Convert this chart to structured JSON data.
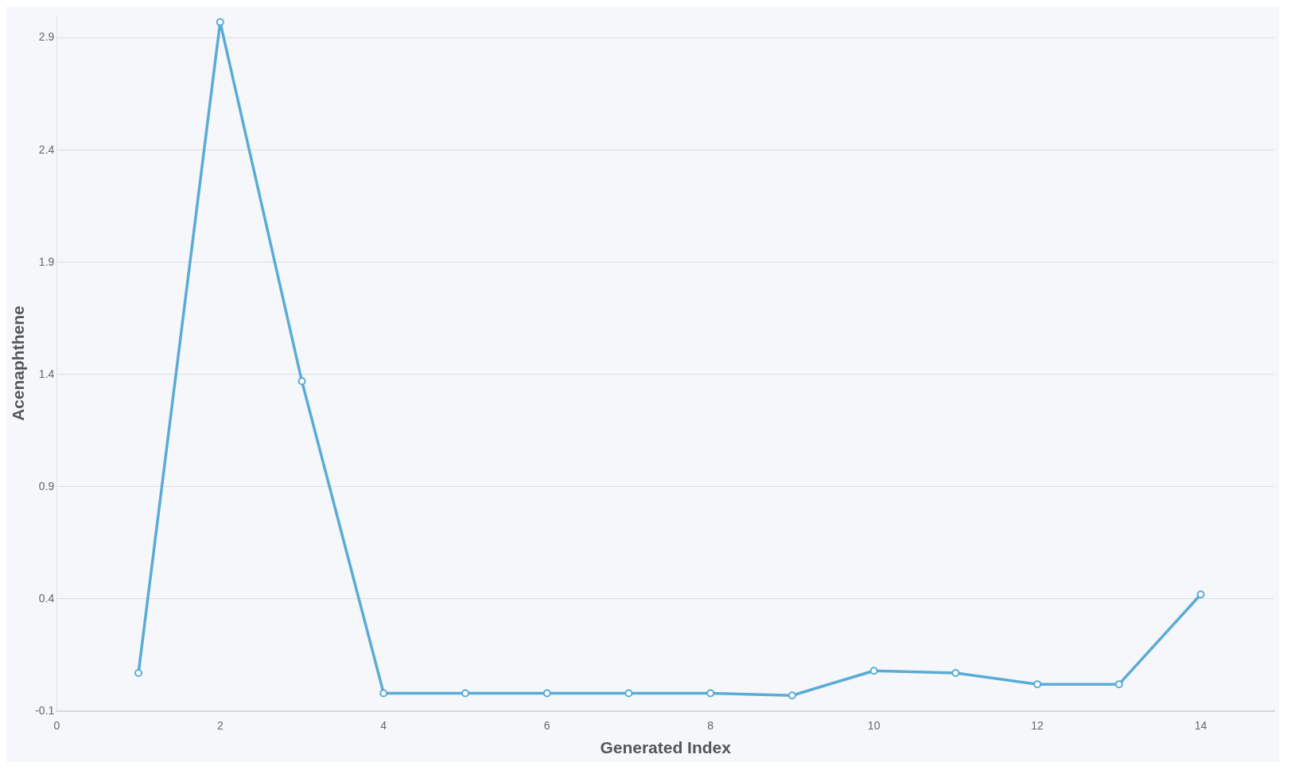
{
  "chart_data": {
    "type": "line",
    "xlabel": "Generated Index",
    "ylabel": "Acenaphthene",
    "x": [
      1,
      2,
      3,
      4,
      5,
      6,
      7,
      8,
      9,
      10,
      11,
      12,
      13,
      14
    ],
    "series": [
      {
        "color": "#5aabd6",
        "values": [
          0.07,
          2.97,
          1.37,
          -0.02,
          -0.02,
          -0.02,
          -0.02,
          -0.02,
          -0.03,
          0.08,
          0.07,
          0.02,
          0.02,
          0.42
        ]
      }
    ],
    "xlim": [
      0,
      14.9
    ],
    "xticks": [
      0,
      2,
      4,
      6,
      8,
      10,
      12,
      14
    ],
    "ylim": [
      -0.1,
      3.0
    ],
    "yticks": [
      -0.1,
      0.4,
      0.9,
      1.4,
      1.9,
      2.4,
      2.9
    ],
    "grid": "y",
    "legend": false,
    "marker": "circle",
    "line_style": "solid"
  }
}
